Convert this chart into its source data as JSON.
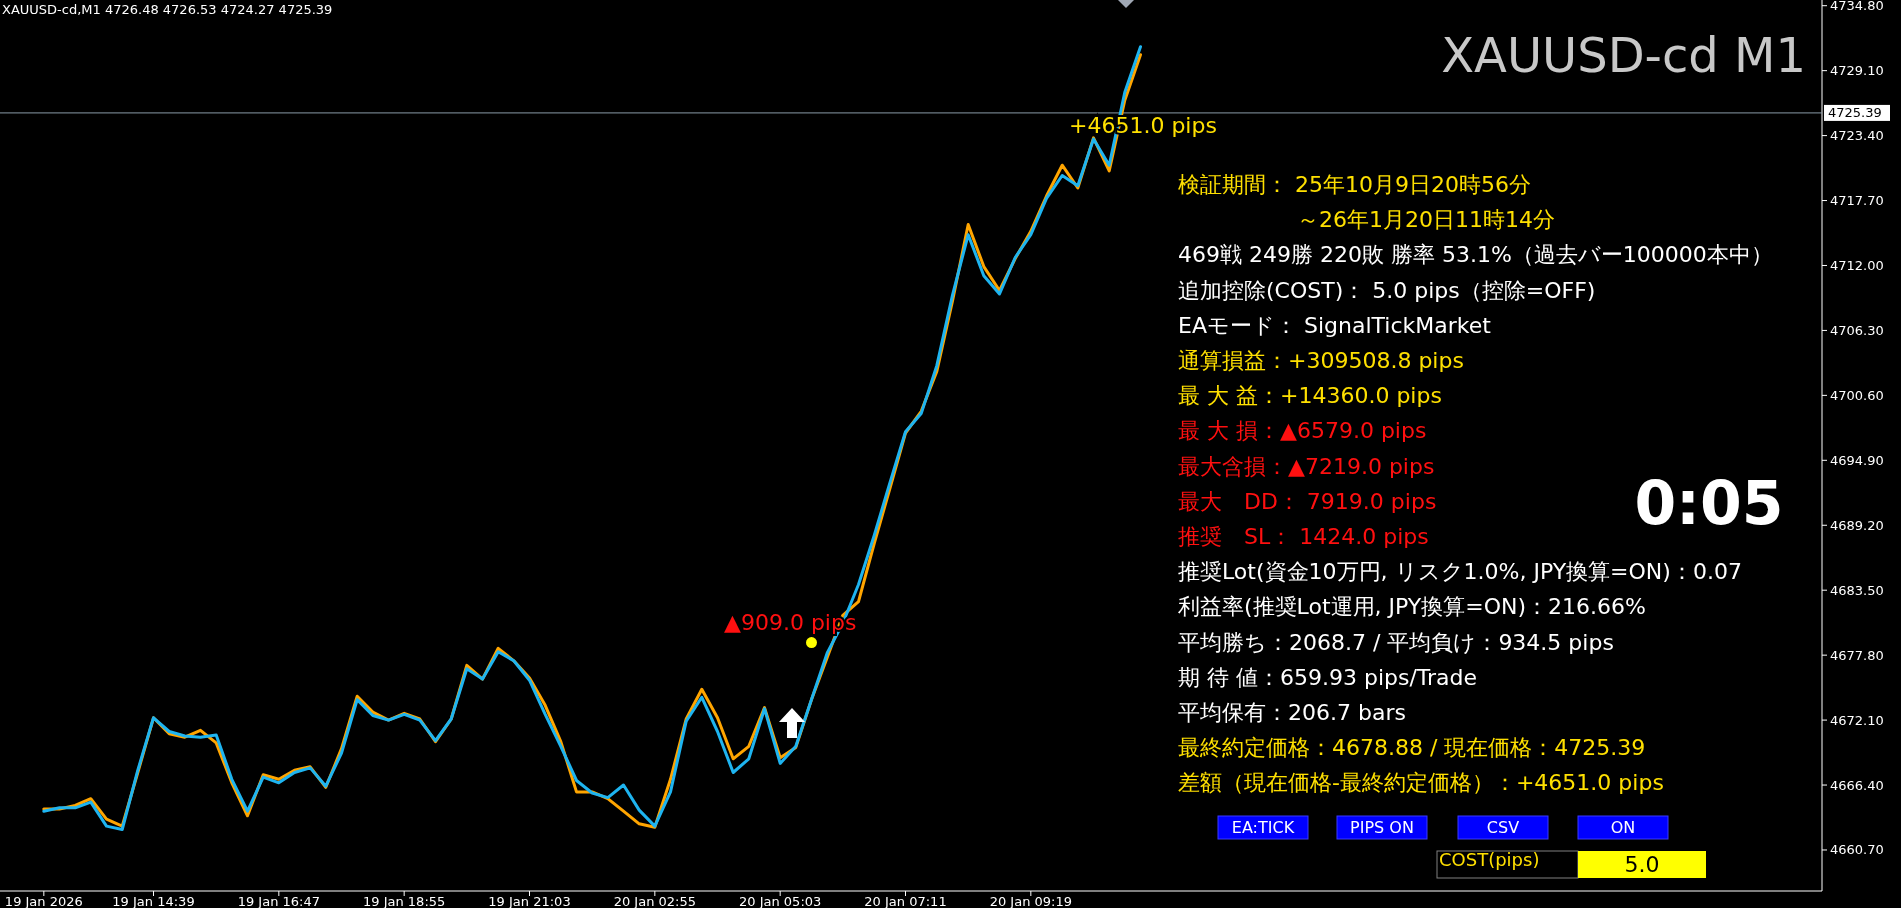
{
  "chart_data": {
    "type": "line",
    "title": "XAUUSD-cd M1",
    "categories": [
      "19 Jan 2026",
      null,
      null,
      null,
      null,
      null,
      null,
      "19 Jan 14:39",
      null,
      null,
      null,
      null,
      null,
      null,
      null,
      "19 Jan 16:47",
      null,
      null,
      null,
      null,
      null,
      null,
      null,
      "19 Jan 18:55",
      null,
      null,
      null,
      null,
      null,
      null,
      null,
      "19 Jan 21:03",
      null,
      null,
      null,
      null,
      null,
      null,
      null,
      "20 Jan 02:55",
      null,
      null,
      null,
      null,
      null,
      null,
      null,
      "20 Jan 05:03",
      null,
      null,
      null,
      null,
      null,
      null,
      null,
      "20 Jan 07:11",
      null,
      null,
      null,
      null,
      null,
      null,
      null,
      "20 Jan 09:19",
      null,
      null,
      null,
      null,
      null,
      null,
      null,
      null,
      null,
      null,
      null,
      null,
      null,
      null,
      null,
      null,
      null,
      null,
      null,
      null,
      null,
      null,
      null,
      null,
      null,
      null,
      null,
      null,
      null,
      null,
      null,
      null,
      null,
      null,
      null,
      null,
      null,
      null,
      null,
      null,
      null,
      null,
      null,
      null,
      null,
      null,
      null,
      null,
      null,
      null
    ],
    "ylim": [
      4657.1,
      4735.3
    ],
    "yticks": [
      {
        "value": 4734.8,
        "label": "4734.80"
      },
      {
        "value": 4729.1,
        "label": "4729.10"
      },
      {
        "value": 4723.4,
        "label": "4723.40"
      },
      {
        "value": 4717.7,
        "label": "4717.70"
      },
      {
        "value": 4712,
        "label": "4712.00"
      },
      {
        "value": 4706.3,
        "label": "4706.30"
      },
      {
        "value": 4700.6,
        "label": "4700.60"
      },
      {
        "value": 4694.9,
        "label": "4694.90"
      },
      {
        "value": 4689.2,
        "label": "4689.20"
      },
      {
        "value": 4683.5,
        "label": "4683.50"
      },
      {
        "value": 4677.8,
        "label": "4677.80"
      },
      {
        "value": 4672.1,
        "label": "4672.10"
      },
      {
        "value": 4666.4,
        "label": "4666.40"
      },
      {
        "value": 4660.7,
        "label": "4660.70"
      }
    ],
    "ref_lines": [
      {
        "axis": "y",
        "value": 4725.39,
        "label": "4725.39",
        "color": "#8a9aa8"
      }
    ],
    "series": [
      {
        "color": "#ffa500",
        "values": [
          4664.3,
          4664.3,
          4664.6,
          4665.2,
          4663.4,
          4662.8,
          4667.5,
          4672.3,
          4670.9,
          4670.6,
          4671.2,
          4670.1,
          4666.6,
          4663.7,
          4667.3,
          4666.9,
          4667.7,
          4668.0,
          4666.2,
          4669.6,
          4674.2,
          4672.8,
          4672.1,
          4672.7,
          4672.2,
          4670.2,
          4672.2,
          4676.9,
          4675.7,
          4678.4,
          4677.3,
          4675.8,
          4673.4,
          4670.2,
          4665.8,
          4665.8,
          4665.2,
          4664.1,
          4663.0,
          4662.7,
          4666.9,
          4672.2,
          4674.8,
          4672.3,
          4668.7,
          4669.8,
          4673.2,
          4668.8,
          4669.7,
          4673.9,
          4677.6,
          4681.3,
          4682.5,
          4687.6,
          4692.4,
          4697.3,
          4699.2,
          4702.7,
          4708.9,
          4715.6,
          4711.9,
          4709.8,
          4712.6,
          4715.0,
          4718.1,
          4720.8,
          4718.8,
          4723.2,
          4720.3,
          4726.5,
          4730.5,
          null,
          null,
          null,
          null,
          null,
          null,
          null,
          null,
          null,
          null,
          null,
          null,
          null,
          null,
          null,
          null,
          null,
          null,
          null,
          null,
          null,
          null,
          null,
          null,
          null,
          null,
          null,
          null,
          null,
          null,
          null,
          null,
          null,
          null,
          null,
          null,
          null,
          null,
          null,
          null,
          null,
          null,
          null
        ]
      },
      {
        "color": "#1eb4f0",
        "values": [
          4664.1,
          4664.4,
          4664.4,
          4664.9,
          4662.8,
          4662.5,
          4667.7,
          4672.3,
          4671.1,
          4670.7,
          4670.6,
          4670.8,
          4666.9,
          4664.1,
          4667.1,
          4666.6,
          4667.5,
          4667.9,
          4666.3,
          4669.2,
          4673.9,
          4672.5,
          4672.1,
          4672.6,
          4672.1,
          4670.3,
          4672.2,
          4676.6,
          4675.7,
          4678.1,
          4677.3,
          4675.6,
          4672.6,
          4669.8,
          4666.8,
          4665.7,
          4665.3,
          4666.4,
          4664.2,
          4662.8,
          4665.8,
          4672.0,
          4674.1,
          4671.1,
          4667.5,
          4668.7,
          4673.1,
          4668.3,
          4669.8,
          4673.9,
          4678.0,
          4680.6,
          4684.0,
          4688.3,
          4692.9,
          4697.4,
          4699.0,
          4703.2,
          4709.4,
          4714.7,
          4711.1,
          4709.5,
          4712.7,
          4714.7,
          4717.9,
          4719.9,
          4719.0,
          4723.1,
          4720.8,
          4727.2,
          4731.2,
          null,
          null,
          null,
          null,
          null,
          null,
          null,
          null,
          null,
          null,
          null,
          null,
          null,
          null,
          null,
          null,
          null,
          null,
          null,
          null,
          null,
          null,
          null,
          null,
          null,
          null,
          null,
          null,
          null,
          null,
          null,
          null,
          null,
          null,
          null,
          null,
          null,
          null,
          null,
          null,
          null,
          null,
          null
        ]
      },
      {
        "type": "scatter",
        "marker": "circle",
        "color": "#ffff00",
        "values": [
          null,
          null,
          null,
          null,
          null,
          null,
          null,
          null,
          null,
          null,
          null,
          null,
          null,
          null,
          null,
          null,
          null,
          null,
          null,
          null,
          null,
          null,
          null,
          null,
          null,
          null,
          null,
          null,
          null,
          null,
          null,
          null,
          null,
          null,
          null,
          null,
          null,
          null,
          null,
          null,
          null,
          null,
          null,
          null,
          null,
          null,
          null,
          null,
          null,
          4678.9,
          null,
          null,
          null,
          null,
          null,
          null,
          null,
          null,
          null,
          null,
          null,
          null,
          null,
          null,
          null,
          null,
          null,
          null,
          null,
          null,
          null,
          null,
          null,
          null,
          null,
          null,
          null,
          null,
          null,
          null,
          null,
          null,
          null,
          null,
          null,
          null,
          null,
          null,
          null,
          null,
          null,
          null,
          null,
          null,
          null,
          null,
          null,
          null,
          null,
          null,
          null,
          null,
          null,
          null,
          null,
          null,
          null,
          null,
          null,
          null,
          null,
          null,
          null,
          null
        ]
      }
    ],
    "annotations": [
      "XAUUSD-cd,M1  4726.48 4726.53 4724.27 4725.39",
      "+4651.0 pips",
      "▲909.0 pips",
      "検証期間： 25年10月9日20時56分",
      "～26年1月20日11時14分",
      "469戦 249勝 220敗 勝率 53.1%（過去バー100000本中）",
      "追加控除(COST)： 5.0 pips（控除=OFF)",
      "EAモード： SignalTickMarket",
      "通算損益：+309508.8 pips",
      "最 大 益：+14360.0 pips",
      "最 大 損：▲6579.0 pips",
      "最大含損：▲7219.0 pips",
      "最大　DD： 7919.0 pips",
      "推奨　SL： 1424.0 pips",
      "推奨Lot(資金10万円, リスク1.0%, JPY換算=ON)：0.07",
      "利益率(推奨Lot運用, JPY換算=ON)：216.66%",
      "平均勝ち：2068.7 / 平均負け：934.5 pips",
      "期 待 値：659.93 pips/Trade",
      "平均保有：206.7 bars",
      "最終約定価格：4678.88 / 現在価格：4725.39",
      "差額（現在価格-最終約定価格）：+4651.0 pips",
      "0:05",
      "EA:TICK",
      "PIPS ON",
      "CSV",
      "ON",
      "COST(pips)",
      "5.0"
    ]
  }
}
